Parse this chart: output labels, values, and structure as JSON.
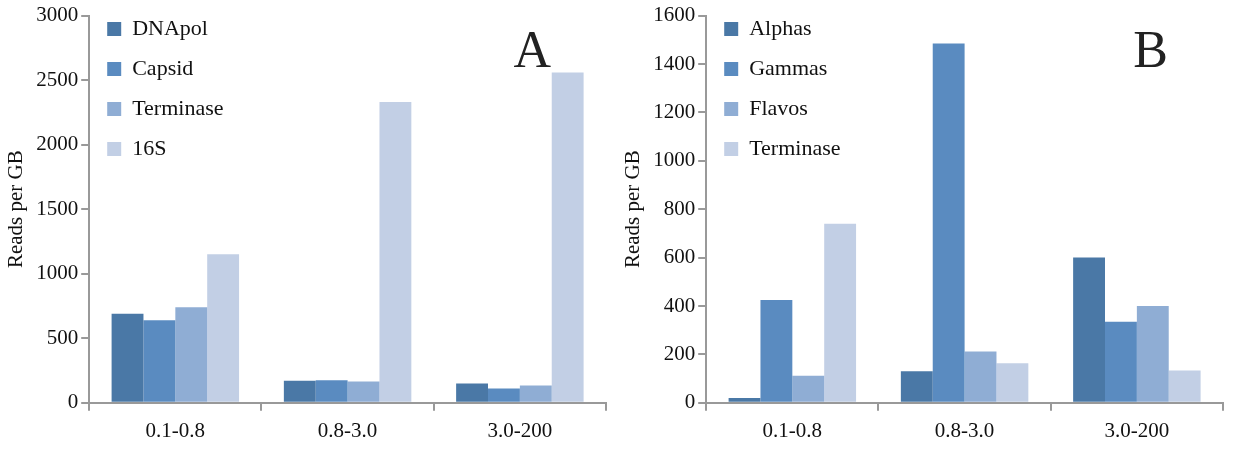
{
  "chart_data": [
    {
      "type": "bar",
      "ylabel": "Reads per GB",
      "categories": [
        "0.1-0.8",
        "0.8-3.0",
        "3.0-200"
      ],
      "ylim": [
        0,
        3000
      ],
      "yticks": [
        0,
        500,
        1000,
        1500,
        2000,
        2500,
        3000
      ],
      "grid": false,
      "legend": "top left",
      "annotations": [
        "A"
      ],
      "series": [
        {
          "name": "DNApol",
          "color": "#4a78a6",
          "values": [
            690,
            170,
            150
          ]
        },
        {
          "name": "Capsid",
          "color": "#5a8bc0",
          "values": [
            640,
            175,
            110
          ]
        },
        {
          "name": "Terminase",
          "color": "#8fadd4",
          "values": [
            740,
            165,
            135
          ]
        },
        {
          "name": "16S",
          "color": "#c2cfe5",
          "values": [
            1150,
            2330,
            2560
          ]
        }
      ]
    },
    {
      "type": "bar",
      "ylabel": "Reads per GB",
      "categories": [
        "0.1-0.8",
        "0.8-3.0",
        "3.0-200"
      ],
      "ylim": [
        0,
        1600
      ],
      "yticks": [
        0,
        200,
        400,
        600,
        800,
        1000,
        1200,
        1400,
        1600
      ],
      "grid": false,
      "legend": "top left",
      "annotations": [
        "B"
      ],
      "series": [
        {
          "name": "Alphas",
          "color": "#4a78a6",
          "values": [
            20,
            130,
            600
          ]
        },
        {
          "name": "Gammas",
          "color": "#5a8bc0",
          "values": [
            425,
            1485,
            335
          ]
        },
        {
          "name": "Flavos",
          "color": "#8fadd4",
          "values": [
            112,
            212,
            400
          ]
        },
        {
          "name": "Terminase",
          "color": "#c2cfe5",
          "values": [
            740,
            163,
            133
          ]
        }
      ]
    }
  ]
}
